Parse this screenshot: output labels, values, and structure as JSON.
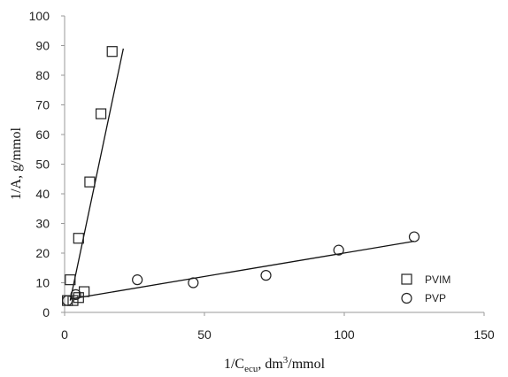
{
  "chart_data": {
    "type": "scatter",
    "title": "",
    "xlabel": {
      "prefix": "1/C",
      "sub": "ecu",
      "suffix": ", dm",
      "sup": "3",
      "tail": "/mmol"
    },
    "ylabel": "1/A, g/mmol",
    "xlim": [
      0,
      150
    ],
    "ylim": [
      0,
      100
    ],
    "xticks": [
      0,
      50,
      100,
      150
    ],
    "yticks": [
      0,
      10,
      20,
      30,
      40,
      50,
      60,
      70,
      80,
      90,
      100
    ],
    "grid": false,
    "legend_position": "bottom-right",
    "series": [
      {
        "name": "PVIM",
        "marker": "square",
        "points": [
          [
            1,
            4
          ],
          [
            2,
            11
          ],
          [
            3,
            4
          ],
          [
            5,
            5
          ],
          [
            5,
            25
          ],
          [
            7,
            7
          ],
          [
            9,
            44
          ],
          [
            13,
            67
          ],
          [
            17,
            88
          ]
        ],
        "fit_line": [
          [
            2,
            4
          ],
          [
            21,
            89
          ]
        ]
      },
      {
        "name": "PVP",
        "marker": "circle",
        "points": [
          [
            1,
            4
          ],
          [
            4,
            6
          ],
          [
            26,
            11
          ],
          [
            46,
            10
          ],
          [
            72,
            12.5
          ],
          [
            98,
            21
          ],
          [
            125,
            25.5
          ]
        ],
        "fit_line": [
          [
            2,
            4.5
          ],
          [
            125,
            24
          ]
        ]
      }
    ]
  }
}
